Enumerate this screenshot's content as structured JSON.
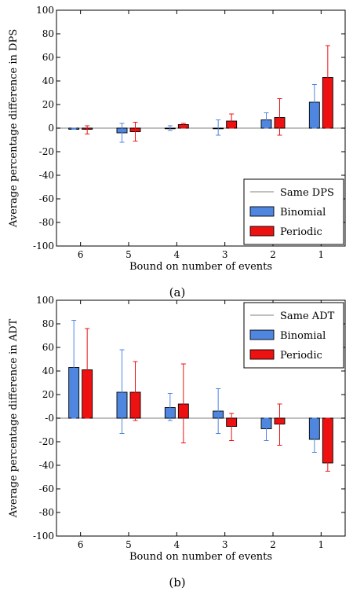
{
  "chart_data": [
    {
      "type": "bar",
      "categories": [
        "6",
        "5",
        "4",
        "3",
        "2",
        "1"
      ],
      "xlabel": "Bound on number of events",
      "ylabel": "Average percentage difference in DPS",
      "ylim": [
        -100,
        100
      ],
      "yticks": [
        100,
        80,
        60,
        40,
        20,
        0,
        -20,
        -40,
        -60,
        -80,
        -100
      ],
      "yticklabels": [
        "100",
        "80",
        "60",
        "40",
        "20",
        "0",
        "-20",
        "-40",
        "-60",
        "-80",
        "-100"
      ],
      "grid": false,
      "reference_line": {
        "name": "Same DPS",
        "value": 0
      },
      "legend_placement": "bottom-right",
      "caption": "(a)",
      "series": [
        {
          "name": "Binomial",
          "color": "#4f86e0",
          "values": [
            -1,
            -4,
            0,
            0,
            7,
            22
          ],
          "err_low": [
            -1,
            -12,
            -2,
            -6,
            0,
            0
          ],
          "err_high": [
            0,
            4,
            2,
            7,
            13,
            37
          ]
        },
        {
          "name": "Periodic",
          "color": "#ee1111",
          "values": [
            -1,
            -3,
            3,
            6,
            9,
            43
          ],
          "err_low": [
            -5,
            -11,
            0,
            0,
            -6,
            0
          ],
          "err_high": [
            2,
            5,
            4,
            12,
            25,
            70
          ]
        }
      ]
    },
    {
      "type": "bar",
      "categories": [
        "6",
        "5",
        "4",
        "3",
        "2",
        "1"
      ],
      "xlabel": "Bound on number of events",
      "ylabel": "Average percentage difference in ADT",
      "ylim": [
        -100,
        100
      ],
      "yticks": [
        100,
        80,
        60,
        40,
        20,
        0,
        -20,
        -40,
        -60,
        -80,
        -100
      ],
      "yticklabels": [
        "100",
        "80",
        "60",
        "40",
        "20",
        "-0",
        "-20",
        "-40",
        "-60",
        "-80",
        "-100"
      ],
      "grid": false,
      "reference_line": {
        "name": "Same ADT",
        "value": 0
      },
      "legend_placement": "top-right",
      "caption": "(b)",
      "series": [
        {
          "name": "Binomial",
          "color": "#4f86e0",
          "values": [
            43,
            22,
            9,
            6,
            -9,
            -18
          ],
          "err_low": [
            0,
            -13,
            -2,
            -13,
            -19,
            -29
          ],
          "err_high": [
            83,
            58,
            21,
            25,
            0,
            0
          ]
        },
        {
          "name": "Periodic",
          "color": "#ee1111",
          "values": [
            41,
            22,
            12,
            -7,
            -5,
            -38
          ],
          "err_low": [
            0,
            -2,
            -21,
            -19,
            -23,
            -45
          ],
          "err_high": [
            76,
            48,
            46,
            4,
            12,
            0
          ]
        }
      ]
    }
  ]
}
